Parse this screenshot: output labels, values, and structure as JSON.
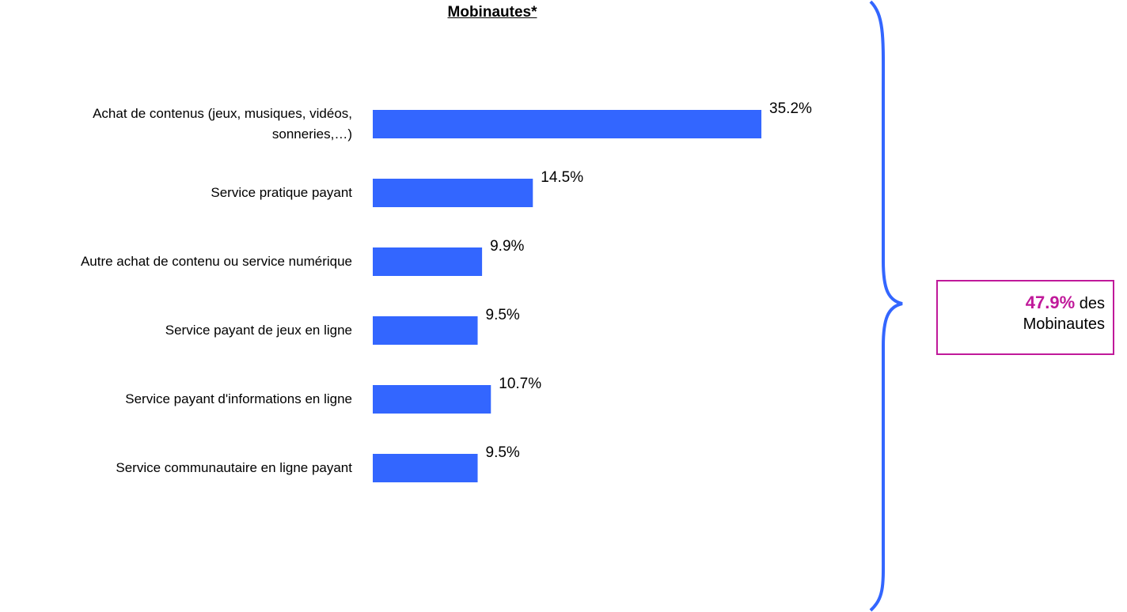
{
  "chart_data": {
    "type": "bar",
    "orientation": "horizontal",
    "title": "Mobinautes*",
    "categories": [
      "Achat de contenus (jeux, musiques, vidéos, sonneries,…)",
      "Service pratique payant",
      "Autre achat de contenu ou service numérique",
      "Service payant de jeux en ligne",
      "Service payant d'informations en ligne",
      "Service communautaire en ligne payant"
    ],
    "values": [
      35.2,
      14.5,
      9.9,
      9.5,
      10.7,
      9.5
    ],
    "value_labels": [
      "35.2%",
      "14.5%",
      "9.9%",
      "9.5%",
      "10.7%",
      "9.5%"
    ],
    "color": "#3366ff",
    "annotation": {
      "highlight": "47.9%",
      "lines": [
        "des",
        "Mobinautes"
      ]
    }
  }
}
